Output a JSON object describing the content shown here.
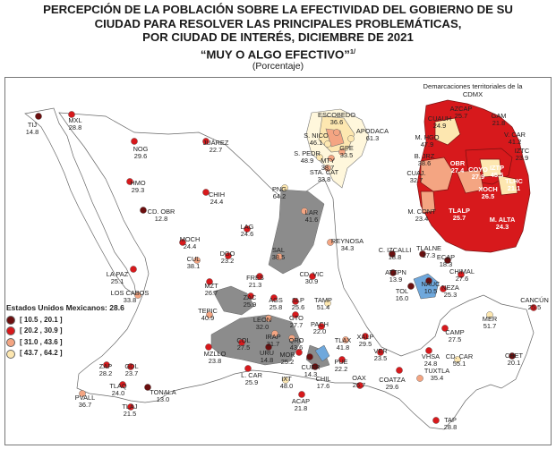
{
  "title": {
    "line1": "PERCEPCIÓN DE LA POBLACIÓN SOBRE LA EFECTIVIDAD DEL GOBIERNO DE SU",
    "line2": "CIUDAD PARA RESOLVER LAS PRINCIPALES PROBLEMÁTICAS,",
    "line3": "POR CIUDAD DE INTERÉS, DICIEMBRE DE 2021",
    "line4": "“MUY O ALGO EFECTIVO”",
    "footnote_mark": "1/",
    "unit": "(Porcentaje)"
  },
  "legend": {
    "title": "Estados Unidos Mexicanos: 28.6",
    "items": [
      {
        "label": "[ 10.5 , 20.1 ]",
        "color": "#6b0f0f"
      },
      {
        "label": "[ 20.2 , 30.9 ]",
        "color": "#d7191c"
      },
      {
        "label": "[ 31.0 , 43.6 ]",
        "color": "#f4a582"
      },
      {
        "label": "[ 43.7 , 64.2 ]",
        "color": "#fde7b0"
      }
    ]
  },
  "cdmx_title": "Demarcaciones territoriales de la CDMX",
  "cities": [
    {
      "name": "TIJ",
      "value": "14.8"
    },
    {
      "name": "MXL",
      "value": "28.8"
    },
    {
      "name": "NOG",
      "value": "29.6"
    },
    {
      "name": "HMO",
      "value": "29.3"
    },
    {
      "name": "CD. OBR",
      "value": "12.8"
    },
    {
      "name": "JUÁREZ",
      "value": "22.7"
    },
    {
      "name": "CHIH",
      "value": "24.4"
    },
    {
      "name": "ESCOBEDO",
      "value": "36.6"
    },
    {
      "name": "S. NICO",
      "value": "46.1"
    },
    {
      "name": "APODACA",
      "value": "61.3"
    },
    {
      "name": "S. PEDR",
      "value": "48.9"
    },
    {
      "name": "MTY",
      "value": "38.7"
    },
    {
      "name": "GPE",
      "value": "33.5"
    },
    {
      "name": "STA. CAT",
      "value": "33.8"
    },
    {
      "name": "PNG",
      "value": "64.2"
    },
    {
      "name": "LAR",
      "value": "41.6"
    },
    {
      "name": "REYNOSA",
      "value": "34.3"
    },
    {
      "name": "LAG",
      "value": "24.6"
    },
    {
      "name": "SAL",
      "value": "38.5"
    },
    {
      "name": "MOCH",
      "value": "24.4"
    },
    {
      "name": "CUL",
      "value": "38.1"
    },
    {
      "name": "DGO",
      "value": "23.2"
    },
    {
      "name": "LA PAZ",
      "value": "25.1"
    },
    {
      "name": "LOS CABOS",
      "value": "33.8"
    },
    {
      "name": "MZT",
      "value": "26.7"
    },
    {
      "name": "FRES",
      "value": "21.3"
    },
    {
      "name": "CD. VIC",
      "value": "30.9"
    },
    {
      "name": "TEPIC",
      "value": "40.9"
    },
    {
      "name": "ZAC",
      "value": "25.9"
    },
    {
      "name": "AGS",
      "value": "25.8"
    },
    {
      "name": "SLP",
      "value": "25.6"
    },
    {
      "name": "TAMP",
      "value": "51.4"
    },
    {
      "name": "LEON",
      "value": "32.0"
    },
    {
      "name": "GTO",
      "value": "27.7"
    },
    {
      "name": "IRAP",
      "value": "31.7"
    },
    {
      "name": "QRO",
      "value": "43.6"
    },
    {
      "name": "PACH",
      "value": "22.0"
    },
    {
      "name": "TLAX",
      "value": "41.8"
    },
    {
      "name": "XALP",
      "value": "29.5"
    },
    {
      "name": "VER",
      "value": "23.5"
    },
    {
      "name": "MZLLO",
      "value": "23.8"
    },
    {
      "name": "COL",
      "value": "27.5"
    },
    {
      "name": "URU",
      "value": "14.8"
    },
    {
      "name": "MOR",
      "value": "25.2"
    },
    {
      "name": "CUER",
      "value": "14.3"
    },
    {
      "name": "PUE",
      "value": "22.2"
    },
    {
      "name": "L. CAR",
      "value": "25.9"
    },
    {
      "name": "IXT",
      "value": "48.0"
    },
    {
      "name": "CHIL",
      "value": "17.6"
    },
    {
      "name": "ACAP",
      "value": "21.8"
    },
    {
      "name": "OAX",
      "value": "26.7"
    },
    {
      "name": "COATZA",
      "value": "29.6"
    },
    {
      "name": "ZAP",
      "value": "28.2"
    },
    {
      "name": "GDL",
      "value": "23.7"
    },
    {
      "name": "TLAQ",
      "value": "24.0"
    },
    {
      "name": "TONALA",
      "value": "13.0"
    },
    {
      "name": "TLAJ",
      "value": "21.5"
    },
    {
      "name": "PVALL",
      "value": "36.7"
    },
    {
      "name": "C. IZCALLI",
      "value": "18.8"
    },
    {
      "name": "TLALNE",
      "value": "17.3"
    },
    {
      "name": "ECAP",
      "value": "18.3"
    },
    {
      "name": "ATZPN",
      "value": "13.9"
    },
    {
      "name": "CHIMAL",
      "value": "27.6"
    },
    {
      "name": "TOL",
      "value": "16.0"
    },
    {
      "name": "NAUC",
      "value": "10.5"
    },
    {
      "name": "NEZA",
      "value": "25.3"
    },
    {
      "name": "VHSA",
      "value": "24.8"
    },
    {
      "name": "CD. CAR",
      "value": "55.1"
    },
    {
      "name": "CAMP",
      "value": "27.5"
    },
    {
      "name": "MER",
      "value": "51.7"
    },
    {
      "name": "CANCÚN",
      "value": "25.5"
    },
    {
      "name": "CHET",
      "value": "20.1"
    },
    {
      "name": "TUXTLA",
      "value": "35.4"
    },
    {
      "name": "TAP",
      "value": "28.8"
    }
  ],
  "cdmx": [
    {
      "name": "AZCAP",
      "value": "25.7"
    },
    {
      "name": "GAM",
      "value": "21.8"
    },
    {
      "name": "CUAUH",
      "value": "24.9"
    },
    {
      "name": "V. CAR",
      "value": "41.2"
    },
    {
      "name": "M. HGO",
      "value": "47.9"
    },
    {
      "name": "IZTC",
      "value": "23.9"
    },
    {
      "name": "B. JRZ",
      "value": "38.6"
    },
    {
      "name": "OBR",
      "value": "27.4"
    },
    {
      "name": "COYO",
      "value": "27.9"
    },
    {
      "name": "IZTP",
      "value": "45.5"
    },
    {
      "name": "TLHC",
      "value": "21.1"
    },
    {
      "name": "CUAJ.",
      "value": "32.7"
    },
    {
      "name": "XOCH",
      "value": "26.5"
    },
    {
      "name": "M. CONT",
      "value": "23.4"
    },
    {
      "name": "TLALP",
      "value": "25.7"
    },
    {
      "name": "M. ALTA",
      "value": "24.3"
    }
  ]
}
